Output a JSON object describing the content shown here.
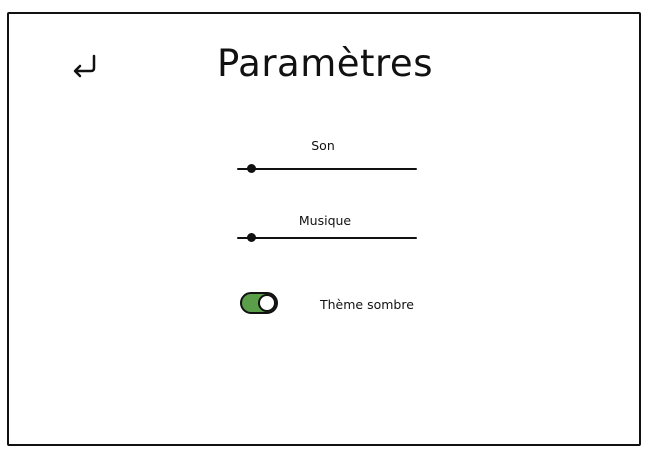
{
  "header": {
    "title": "Paramètres",
    "back_icon": "return-arrow-icon"
  },
  "settings": {
    "sound": {
      "label": "Son",
      "value": 0.08
    },
    "music": {
      "label": "Musique",
      "value": 0.08
    },
    "dark_theme": {
      "label": "Thème sombre",
      "enabled": true,
      "on_color": "#5a9e4a"
    }
  }
}
